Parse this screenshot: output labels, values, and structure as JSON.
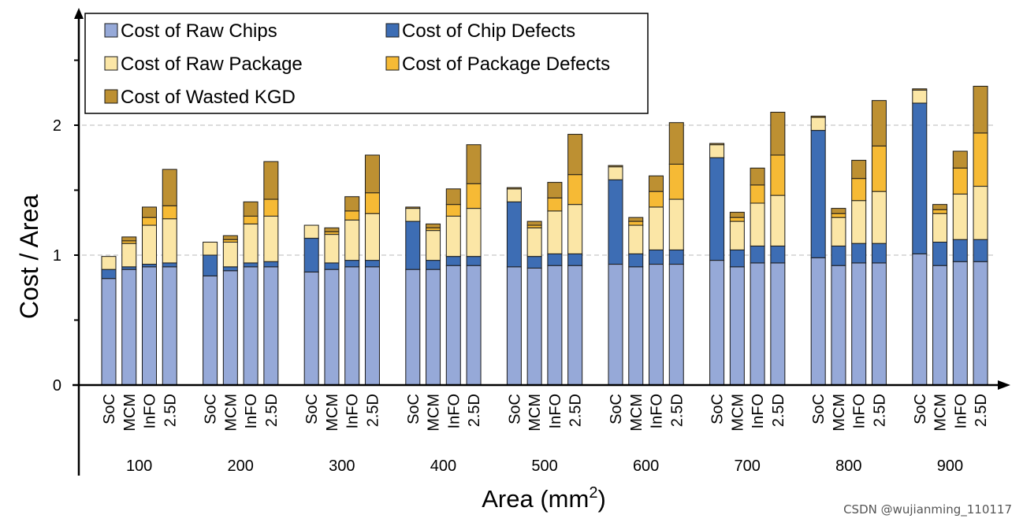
{
  "chart_data": {
    "type": "bar",
    "stacked": true,
    "title": "",
    "ylabel": "Cost / Area",
    "xlabel_main": "Area (mm",
    "xlabel_sup": "2",
    "xlabel_tail": ")",
    "ylim": [
      0,
      2.5
    ],
    "yticks": [
      0,
      1,
      2
    ],
    "grid": "horizontal dashed at 1 and 2",
    "legend_position": "top-left",
    "groups": [
      "100",
      "200",
      "300",
      "400",
      "500",
      "600",
      "700",
      "800",
      "900"
    ],
    "subcategories": [
      "SoC",
      "MCM",
      "InFO",
      "2.5D"
    ],
    "series": [
      {
        "name": "Cost of Raw Chips",
        "color": "#96a9d8",
        "values": [
          [
            0.82,
            0.89,
            0.91,
            0.91
          ],
          [
            0.84,
            0.88,
            0.91,
            0.91
          ],
          [
            0.87,
            0.89,
            0.91,
            0.91
          ],
          [
            0.89,
            0.89,
            0.92,
            0.92
          ],
          [
            0.91,
            0.9,
            0.92,
            0.92
          ],
          [
            0.93,
            0.91,
            0.93,
            0.93
          ],
          [
            0.96,
            0.91,
            0.94,
            0.94
          ],
          [
            0.98,
            0.92,
            0.94,
            0.94
          ],
          [
            1.01,
            0.92,
            0.95,
            0.95
          ]
        ]
      },
      {
        "name": "Cost of Chip Defects",
        "color": "#3d6db4",
        "values": [
          [
            0.07,
            0.02,
            0.02,
            0.03
          ],
          [
            0.16,
            0.03,
            0.03,
            0.04
          ],
          [
            0.26,
            0.05,
            0.05,
            0.05
          ],
          [
            0.37,
            0.07,
            0.07,
            0.07
          ],
          [
            0.5,
            0.09,
            0.09,
            0.09
          ],
          [
            0.65,
            0.1,
            0.11,
            0.11
          ],
          [
            0.79,
            0.13,
            0.13,
            0.13
          ],
          [
            0.98,
            0.15,
            0.15,
            0.15
          ],
          [
            1.16,
            0.18,
            0.17,
            0.17
          ]
        ]
      },
      {
        "name": "Cost of Raw Package",
        "color": "#fbe6a6",
        "values": [
          [
            0.1,
            0.18,
            0.3,
            0.34
          ],
          [
            0.1,
            0.19,
            0.3,
            0.35
          ],
          [
            0.1,
            0.22,
            0.31,
            0.36
          ],
          [
            0.1,
            0.23,
            0.31,
            0.37
          ],
          [
            0.1,
            0.22,
            0.33,
            0.38
          ],
          [
            0.1,
            0.22,
            0.33,
            0.39
          ],
          [
            0.1,
            0.22,
            0.33,
            0.39
          ],
          [
            0.1,
            0.22,
            0.33,
            0.4
          ],
          [
            0.1,
            0.22,
            0.35,
            0.41
          ]
        ]
      },
      {
        "name": "Cost of Package Defects",
        "color": "#f6ba35",
        "values": [
          [
            0.0,
            0.02,
            0.06,
            0.1
          ],
          [
            0.0,
            0.02,
            0.06,
            0.13
          ],
          [
            0.0,
            0.02,
            0.07,
            0.16
          ],
          [
            0.0,
            0.02,
            0.09,
            0.19
          ],
          [
            0.0,
            0.02,
            0.1,
            0.23
          ],
          [
            0.0,
            0.03,
            0.12,
            0.27
          ],
          [
            0.0,
            0.03,
            0.14,
            0.31
          ],
          [
            0.0,
            0.03,
            0.17,
            0.35
          ],
          [
            0.0,
            0.03,
            0.2,
            0.41
          ]
        ]
      },
      {
        "name": "Cost of Wasted KGD",
        "color": "#bd9032",
        "values": [
          [
            0.0,
            0.03,
            0.08,
            0.28
          ],
          [
            0.0,
            0.03,
            0.11,
            0.29
          ],
          [
            0.0,
            0.03,
            0.11,
            0.29
          ],
          [
            0.01,
            0.03,
            0.12,
            0.3
          ],
          [
            0.01,
            0.03,
            0.12,
            0.31
          ],
          [
            0.01,
            0.03,
            0.12,
            0.32
          ],
          [
            0.01,
            0.04,
            0.13,
            0.33
          ],
          [
            0.01,
            0.04,
            0.14,
            0.35
          ],
          [
            0.01,
            0.04,
            0.13,
            0.36
          ]
        ]
      }
    ]
  },
  "watermark": "CSDN @wujianming_110117"
}
